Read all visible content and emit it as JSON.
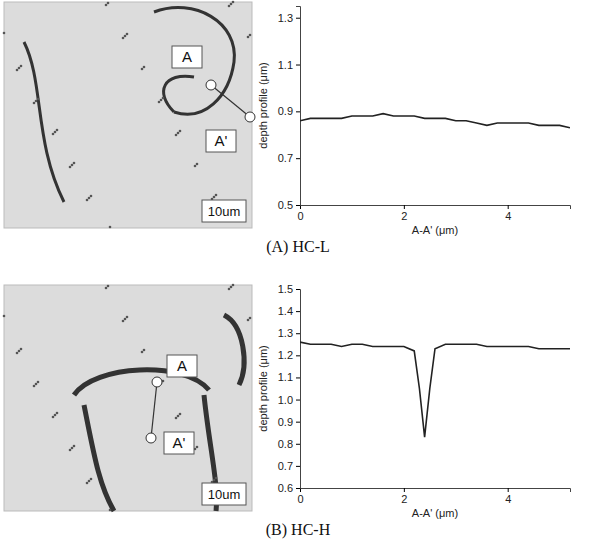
{
  "chart_data": [
    {
      "type": "line",
      "title": "(A) HC-L",
      "annotations": [
        "A",
        "A'",
        "10um"
      ],
      "x_label": "A-A' (μm)",
      "y_label": "depth profile (μm)",
      "x": [
        0,
        0.2,
        0.4,
        0.6,
        0.8,
        1.0,
        1.2,
        1.4,
        1.6,
        1.8,
        2.0,
        2.2,
        2.4,
        2.6,
        2.8,
        3.0,
        3.2,
        3.4,
        3.6,
        3.8,
        4.0,
        4.2,
        4.4,
        4.6,
        4.8,
        5.0,
        5.2
      ],
      "values": [
        0.86,
        0.87,
        0.87,
        0.87,
        0.87,
        0.88,
        0.88,
        0.88,
        0.89,
        0.88,
        0.88,
        0.88,
        0.87,
        0.87,
        0.87,
        0.86,
        0.86,
        0.85,
        0.84,
        0.85,
        0.85,
        0.85,
        0.85,
        0.84,
        0.84,
        0.84,
        0.83
      ],
      "color": "#222222",
      "xlim": [
        0,
        5.2
      ],
      "xticks": [
        0,
        2,
        4
      ],
      "ylim": [
        0.5,
        1.35
      ],
      "yticks": [
        0.5,
        0.7,
        0.9,
        1.1,
        1.3
      ]
    },
    {
      "type": "line",
      "title": "(B) HC-H",
      "annotations": [
        "A",
        "A'",
        "10um"
      ],
      "x_label": "A-A' (μm)",
      "y_label": "depth profile (μm)",
      "x": [
        0,
        0.2,
        0.4,
        0.6,
        0.8,
        1.0,
        1.2,
        1.4,
        1.6,
        1.8,
        2.0,
        2.2,
        2.3,
        2.4,
        2.5,
        2.6,
        2.8,
        3.0,
        3.2,
        3.4,
        3.6,
        3.8,
        4.0,
        4.2,
        4.4,
        4.6,
        4.8,
        5.0,
        5.2
      ],
      "values": [
        1.26,
        1.25,
        1.25,
        1.25,
        1.24,
        1.25,
        1.25,
        1.24,
        1.24,
        1.24,
        1.24,
        1.22,
        1.05,
        0.83,
        1.05,
        1.23,
        1.25,
        1.25,
        1.25,
        1.25,
        1.24,
        1.24,
        1.24,
        1.24,
        1.24,
        1.23,
        1.23,
        1.23,
        1.23
      ],
      "color": "#222222",
      "xlim": [
        0,
        5.2
      ],
      "xticks": [
        0,
        2,
        4
      ],
      "ylim": [
        0.6,
        1.5
      ],
      "yticks": [
        0.6,
        0.7,
        0.8,
        0.9,
        {
          "value": 1,
          "label": "1.0"
        },
        1.1,
        1.2,
        1.3,
        1.4,
        1.5
      ]
    }
  ]
}
